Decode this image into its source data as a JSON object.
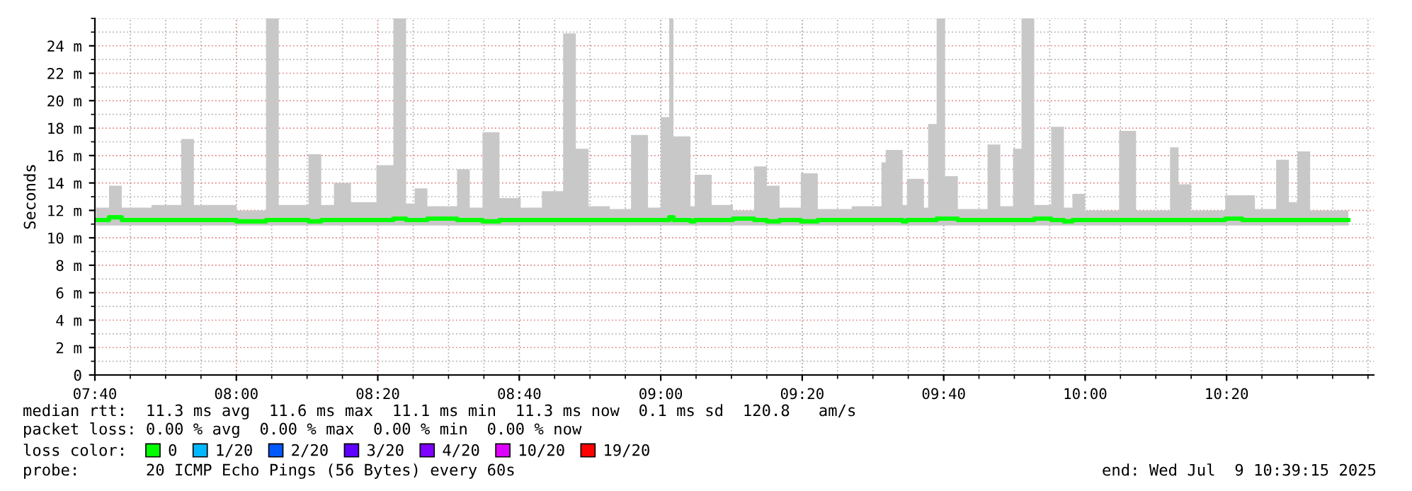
{
  "chart_data": {
    "type": "step",
    "ylabel": "Seconds",
    "xlim": [
      7.6667,
      10.68
    ],
    "ylim": [
      0,
      26
    ],
    "xticks": [
      {
        "value": 7.6667,
        "label": "07:40"
      },
      {
        "value": 8.0,
        "label": "08:00"
      },
      {
        "value": 8.3333,
        "label": "08:20"
      },
      {
        "value": 8.6667,
        "label": "08:40"
      },
      {
        "value": 9.0,
        "label": "09:00"
      },
      {
        "value": 9.3333,
        "label": "09:20"
      },
      {
        "value": 9.6667,
        "label": "09:40"
      },
      {
        "value": 10.0,
        "label": "10:00"
      },
      {
        "value": 10.3333,
        "label": "10:20"
      }
    ],
    "yticks": [
      0,
      {
        "value": 2,
        "label": "2 m"
      },
      {
        "value": 4,
        "label": "4 m"
      },
      {
        "value": 6,
        "label": "6 m"
      },
      {
        "value": 8,
        "label": "8 m"
      },
      {
        "value": 10,
        "label": "10 m"
      },
      {
        "value": 12,
        "label": "12 m"
      },
      {
        "value": 14,
        "label": "14 m"
      },
      {
        "value": 16,
        "label": "16 m"
      },
      {
        "value": 18,
        "label": "18 m"
      },
      {
        "value": 20,
        "label": "20 m"
      },
      {
        "value": 22,
        "label": "22 m"
      },
      {
        "value": 24,
        "label": "24 m"
      }
    ],
    "grid": true,
    "legend": "bottom",
    "legend_title": "loss color:",
    "series": [
      {
        "name": "0",
        "color": "#00ff00",
        "x": [
          7.67,
          7.7,
          7.73,
          7.8,
          7.87,
          7.9,
          8.0,
          8.07,
          8.1,
          8.17,
          8.2,
          8.23,
          8.27,
          8.33,
          8.37,
          8.4,
          8.42,
          8.45,
          8.52,
          8.55,
          8.58,
          8.62,
          8.67,
          8.72,
          8.77,
          8.8,
          8.83,
          8.88,
          8.93,
          8.97,
          9.0,
          9.02,
          9.03,
          9.07,
          9.08,
          9.12,
          9.17,
          9.22,
          9.25,
          9.28,
          9.33,
          9.37,
          9.45,
          9.52,
          9.53,
          9.57,
          9.58,
          9.62,
          9.63,
          9.65,
          9.67,
          9.7,
          9.77,
          9.8,
          9.83,
          9.85,
          9.88,
          9.92,
          9.95,
          9.97,
          10.0,
          10.08,
          10.12,
          10.2,
          10.22,
          10.25,
          10.33,
          10.37,
          10.4,
          10.45,
          10.48,
          10.5,
          10.53,
          10.62
        ],
        "values": [
          11.3,
          11.5,
          11.3,
          11.3,
          11.3,
          11.3,
          11.2,
          11.3,
          11.3,
          11.2,
          11.3,
          11.3,
          11.3,
          11.3,
          11.4,
          11.3,
          11.3,
          11.4,
          11.3,
          11.3,
          11.2,
          11.3,
          11.3,
          11.3,
          11.3,
          11.3,
          11.3,
          11.3,
          11.3,
          11.3,
          11.3,
          11.5,
          11.3,
          11.2,
          11.3,
          11.3,
          11.4,
          11.3,
          11.2,
          11.3,
          11.2,
          11.3,
          11.3,
          11.3,
          11.3,
          11.2,
          11.3,
          11.3,
          11.3,
          11.4,
          11.4,
          11.3,
          11.3,
          11.3,
          11.3,
          11.3,
          11.4,
          11.3,
          11.2,
          11.3,
          11.3,
          11.3,
          11.3,
          11.3,
          11.3,
          11.3,
          11.4,
          11.3,
          11.3,
          11.3,
          11.3,
          11.3,
          11.3,
          11.3
        ],
        "lower": [
          10.9,
          10.9,
          10.9,
          10.9,
          10.9,
          10.9,
          10.9,
          10.9,
          10.9,
          10.9,
          10.9,
          10.9,
          10.9,
          10.9,
          10.9,
          10.9,
          10.9,
          10.9,
          10.9,
          10.9,
          10.9,
          10.9,
          10.9,
          10.9,
          10.9,
          10.9,
          10.9,
          10.9,
          10.9,
          10.9,
          10.9,
          10.9,
          10.9,
          10.9,
          10.9,
          10.9,
          10.9,
          10.9,
          10.9,
          10.9,
          10.9,
          10.9,
          10.9,
          10.9,
          10.9,
          10.9,
          10.9,
          10.9,
          10.9,
          10.9,
          10.9,
          10.9,
          10.9,
          10.9,
          10.9,
          10.9,
          10.9,
          10.9,
          10.9,
          10.9,
          10.9,
          10.9,
          10.9,
          10.9,
          10.9,
          10.9,
          10.9,
          10.9,
          10.9,
          10.9,
          10.9,
          10.9,
          10.9,
          10.9
        ],
        "upper": [
          12.2,
          13.8,
          12.2,
          12.4,
          17.2,
          12.4,
          12.0,
          26,
          12.4,
          16.1,
          12.4,
          14.0,
          12.6,
          15.3,
          26,
          12.5,
          13.6,
          12.3,
          15.0,
          12.2,
          17.7,
          12.9,
          12.2,
          13.4,
          24.9,
          16.5,
          12.3,
          12.1,
          17.5,
          12.2,
          18.8,
          26,
          17.4,
          12.3,
          14.6,
          12.4,
          12.0,
          15.2,
          13.8,
          12.2,
          14.7,
          12.1,
          12.3,
          15.5,
          16.4,
          12.4,
          14.3,
          12.2,
          18.3,
          26,
          14.5,
          12.1,
          16.8,
          12.3,
          16.5,
          26,
          12.4,
          18.1,
          12.2,
          13.2,
          12.0,
          17.8,
          12.0,
          16.6,
          13.9,
          12.0,
          13.1,
          13.1,
          12.1,
          15.7,
          12.6,
          16.3,
          12.0,
          12.3
        ]
      },
      {
        "name": "1/20",
        "color": "#00b8ff"
      },
      {
        "name": "2/20",
        "color": "#0059ff"
      },
      {
        "name": "3/20",
        "color": "#5e00ff"
      },
      {
        "name": "4/20",
        "color": "#7e00ff"
      },
      {
        "name": "10/20",
        "color": "#dd00ff"
      },
      {
        "name": "19/20",
        "color": "#ff0000"
      }
    ],
    "annotations": [
      "median rtt:  11.3 ms avg  11.6 ms max  11.1 ms min  11.3 ms now  0.1 ms sd  120.8   am/s",
      "packet loss: 0.00 % avg  0.00 % max  0.00 % min  0.00 % now",
      "probe:       20 ICMP Echo Pings (56 Bytes) every 60s",
      "end: Wed Jul  9 10:39:15 2025"
    ]
  }
}
